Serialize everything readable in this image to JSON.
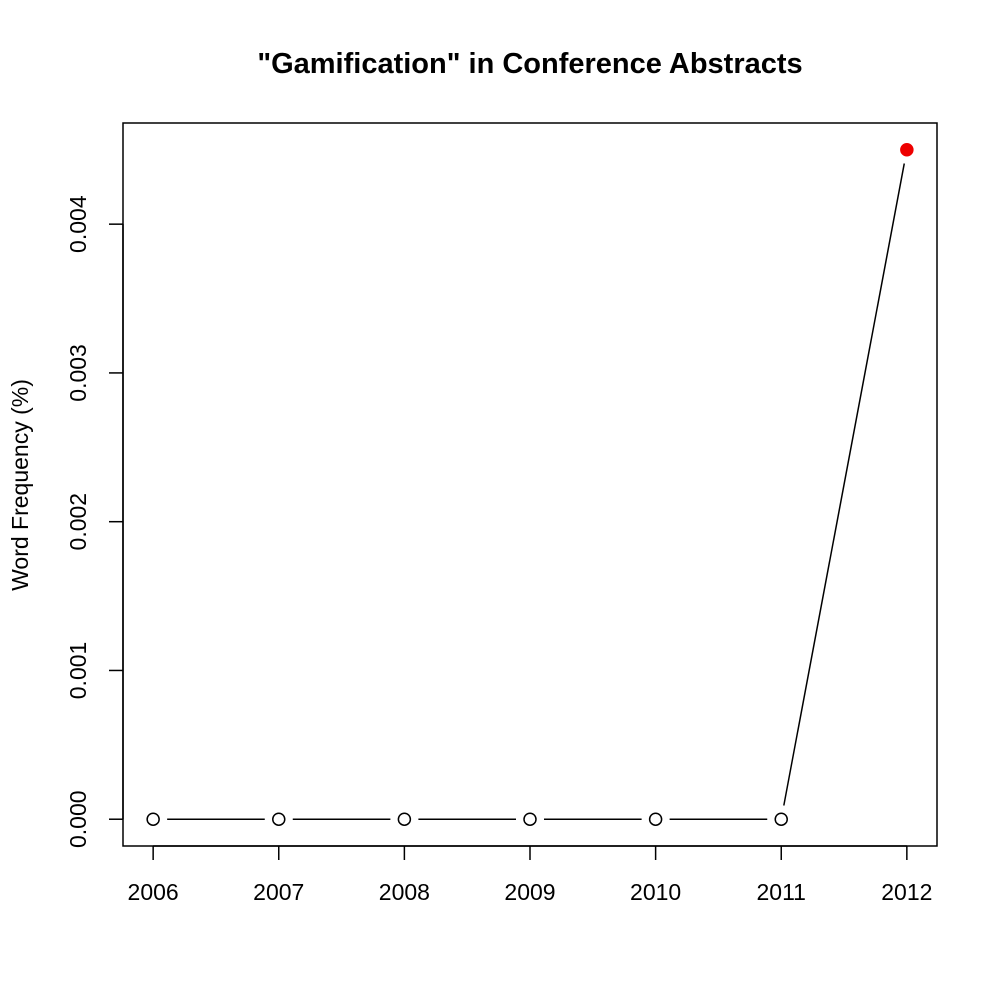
{
  "chart_data": {
    "type": "line",
    "title": "\"Gamification\" in Conference Abstracts",
    "xlabel": "",
    "ylabel": "Word Frequency (%)",
    "x": [
      2006,
      2007,
      2008,
      2009,
      2010,
      2011,
      2012
    ],
    "x_tick_labels": [
      "2006",
      "2007",
      "2008",
      "2009",
      "2010",
      "2011",
      "2012"
    ],
    "y": [
      0,
      0,
      0,
      0,
      0,
      0,
      0.0045
    ],
    "y_ticks": [
      0,
      0.001,
      0.002,
      0.003,
      0.004
    ],
    "y_tick_labels": [
      "0.000",
      "0.001",
      "0.002",
      "0.003",
      "0.004"
    ],
    "xlim": [
      2005.76,
      2012.24
    ],
    "ylim": [
      -0.00018,
      0.00468
    ],
    "grid": false,
    "style": "line with open circle markers (type b)",
    "highlight": {
      "index": 6,
      "color": "#ee0000"
    },
    "marker_color": "#000000",
    "line_color": "#000000"
  }
}
